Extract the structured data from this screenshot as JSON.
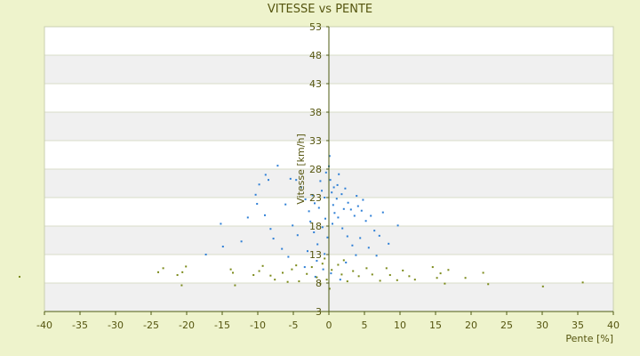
{
  "chart_data": {
    "type": "scatter",
    "title": "VITESSE vs PENTE",
    "xlabel": "Pente [%]",
    "ylabel": "Vitesse [km/h]",
    "xlim": [
      -40,
      40
    ],
    "ylim": [
      3,
      53
    ],
    "x_ticks": [
      "-40",
      "-35",
      "-30",
      "-25",
      "-20",
      "-15",
      "-10",
      "-5",
      "0",
      "5",
      "10",
      "15",
      "20",
      "25",
      "30",
      "35",
      "40"
    ],
    "y_ticks": [
      "3",
      "8",
      "13",
      "18",
      "23",
      "28",
      "33",
      "38",
      "43",
      "48",
      "53"
    ],
    "grid": true,
    "legend": "none",
    "colors": {
      "background": "#eef3cc",
      "band_light": "#ffffff",
      "band_dark": "#f0f0f0",
      "axis": "#4d5a12",
      "text": "#55550f",
      "series_blue": "#2e7fd6",
      "series_olive": "#7b8a1a"
    },
    "series": [
      {
        "color": "#2e7fd6",
        "points": [
          [
            -7.2,
            28.6
          ],
          [
            -8.5,
            26.1
          ],
          [
            -9.8,
            25.3
          ],
          [
            -8.9,
            27.0
          ],
          [
            -10.3,
            23.5
          ],
          [
            -10.1,
            21.9
          ],
          [
            -11.4,
            19.5
          ],
          [
            -15.2,
            18.4
          ],
          [
            -14.9,
            14.4
          ],
          [
            -17.3,
            13.0
          ],
          [
            -12.3,
            15.3
          ],
          [
            -9.0,
            19.9
          ],
          [
            -8.2,
            17.5
          ],
          [
            -6.1,
            21.8
          ],
          [
            -5.4,
            26.3
          ],
          [
            -4.6,
            26.1
          ],
          [
            -3.9,
            24.8
          ],
          [
            -3.3,
            22.7
          ],
          [
            -2.8,
            20.6
          ],
          [
            -2.6,
            18.8
          ],
          [
            -2.1,
            16.9
          ],
          [
            -1.6,
            14.8
          ],
          [
            -0.6,
            13.1
          ],
          [
            -0.4,
            27.4
          ],
          [
            -1.2,
            25.9
          ],
          [
            0.0,
            28.5
          ],
          [
            0.2,
            26.1
          ],
          [
            0.4,
            23.9
          ],
          [
            0.6,
            21.7
          ],
          [
            1.2,
            25.2
          ],
          [
            1.4,
            27.1
          ],
          [
            1.8,
            23.6
          ],
          [
            2.3,
            24.6
          ],
          [
            2.7,
            22.1
          ],
          [
            3.1,
            20.9
          ],
          [
            3.6,
            19.8
          ],
          [
            4.1,
            21.5
          ],
          [
            4.6,
            20.7
          ],
          [
            5.2,
            18.9
          ],
          [
            5.9,
            19.8
          ],
          [
            6.4,
            17.2
          ],
          [
            7.1,
            16.3
          ],
          [
            7.6,
            20.4
          ],
          [
            9.7,
            18.1
          ],
          [
            8.4,
            14.9
          ],
          [
            3.8,
            12.9
          ],
          [
            2.4,
            11.6
          ],
          [
            -0.8,
            10.4
          ],
          [
            -1.9,
            9.1
          ],
          [
            -3.4,
            10.8
          ],
          [
            -5.7,
            12.6
          ],
          [
            -6.6,
            14.0
          ],
          [
            -7.8,
            15.8
          ],
          [
            1.1,
            22.8
          ],
          [
            0.8,
            20.3
          ],
          [
            -0.5,
            19.3
          ],
          [
            -1.4,
            21.2
          ],
          [
            -2.3,
            23.4
          ],
          [
            -1.0,
            24.2
          ],
          [
            0.5,
            18.4
          ],
          [
            1.9,
            17.6
          ],
          [
            2.6,
            16.2
          ],
          [
            3.3,
            14.6
          ],
          [
            4.4,
            15.9
          ],
          [
            5.6,
            14.2
          ],
          [
            6.7,
            12.8
          ],
          [
            -4.4,
            16.4
          ],
          [
            -5.1,
            18.1
          ],
          [
            -3.0,
            13.6
          ],
          [
            -1.7,
            11.9
          ],
          [
            0.3,
            9.7
          ],
          [
            1.6,
            8.6
          ],
          [
            -0.2,
            16.0
          ],
          [
            -0.9,
            17.8
          ],
          [
            1.3,
            19.5
          ],
          [
            2.1,
            21.0
          ],
          [
            0.1,
            30.3
          ],
          [
            -0.6,
            23.0
          ],
          [
            0.7,
            24.8
          ],
          [
            -2.0,
            22.0
          ],
          [
            3.9,
            23.3
          ],
          [
            4.8,
            22.6
          ]
        ]
      },
      {
        "color": "#7b8a1a",
        "points": [
          [
            -24.0,
            9.9
          ],
          [
            -23.3,
            10.6
          ],
          [
            -21.3,
            9.4
          ],
          [
            -20.6,
            9.9
          ],
          [
            -20.1,
            10.9
          ],
          [
            -20.7,
            7.6
          ],
          [
            -13.8,
            10.4
          ],
          [
            -13.5,
            9.8
          ],
          [
            -13.2,
            7.6
          ],
          [
            -10.6,
            9.4
          ],
          [
            -9.8,
            10.1
          ],
          [
            -9.3,
            11.0
          ],
          [
            -8.2,
            9.3
          ],
          [
            -7.6,
            8.6
          ],
          [
            -6.5,
            9.8
          ],
          [
            -5.2,
            10.4
          ],
          [
            -4.6,
            11.1
          ],
          [
            -4.2,
            8.3
          ],
          [
            -3.1,
            9.6
          ],
          [
            -2.4,
            10.8
          ],
          [
            -1.7,
            9.0
          ],
          [
            -0.9,
            11.4
          ],
          [
            -0.3,
            8.6
          ],
          [
            0.4,
            10.3
          ],
          [
            1.3,
            11.2
          ],
          [
            1.8,
            9.5
          ],
          [
            2.6,
            8.3
          ],
          [
            3.4,
            10.1
          ],
          [
            4.2,
            9.2
          ],
          [
            5.3,
            10.6
          ],
          [
            6.1,
            9.5
          ],
          [
            7.2,
            8.4
          ],
          [
            8.1,
            10.6
          ],
          [
            8.6,
            9.4
          ],
          [
            9.6,
            8.5
          ],
          [
            10.4,
            10.2
          ],
          [
            11.3,
            9.2
          ],
          [
            12.1,
            8.6
          ],
          [
            14.6,
            10.8
          ],
          [
            15.2,
            8.9
          ],
          [
            15.7,
            9.7
          ],
          [
            16.3,
            7.9
          ],
          [
            16.8,
            10.3
          ],
          [
            19.2,
            8.9
          ],
          [
            21.7,
            9.8
          ],
          [
            22.4,
            7.8
          ],
          [
            30.1,
            7.4
          ],
          [
            35.7,
            8.1
          ],
          [
            -43.5,
            9.1
          ],
          [
            0.1,
            7.0
          ],
          [
            -0.6,
            12.3
          ],
          [
            -1.2,
            7.9
          ],
          [
            2.1,
            12.0
          ],
          [
            -5.8,
            8.2
          ]
        ]
      }
    ]
  }
}
